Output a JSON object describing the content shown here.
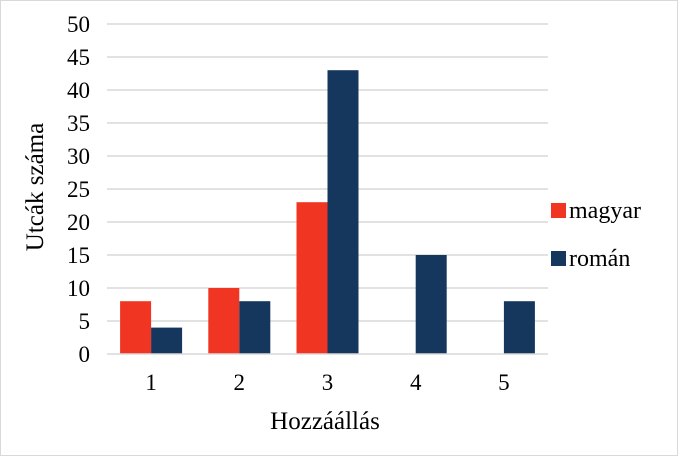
{
  "chart_data": {
    "type": "bar",
    "title": "",
    "xlabel": "Hozzáállás",
    "ylabel": "Utcák száma",
    "categories": [
      "1",
      "2",
      "3",
      "4",
      "5"
    ],
    "series": [
      {
        "name": "magyar",
        "color": "#f03523",
        "values": [
          8,
          10,
          23,
          0,
          0
        ]
      },
      {
        "name": "román",
        "color": "#15375e",
        "values": [
          4,
          8,
          43,
          15,
          8
        ]
      }
    ],
    "ylim": [
      0,
      50
    ],
    "yticks": [
      0,
      5,
      10,
      15,
      20,
      25,
      30,
      35,
      40,
      45,
      50
    ],
    "grid": true,
    "legend": "right"
  }
}
